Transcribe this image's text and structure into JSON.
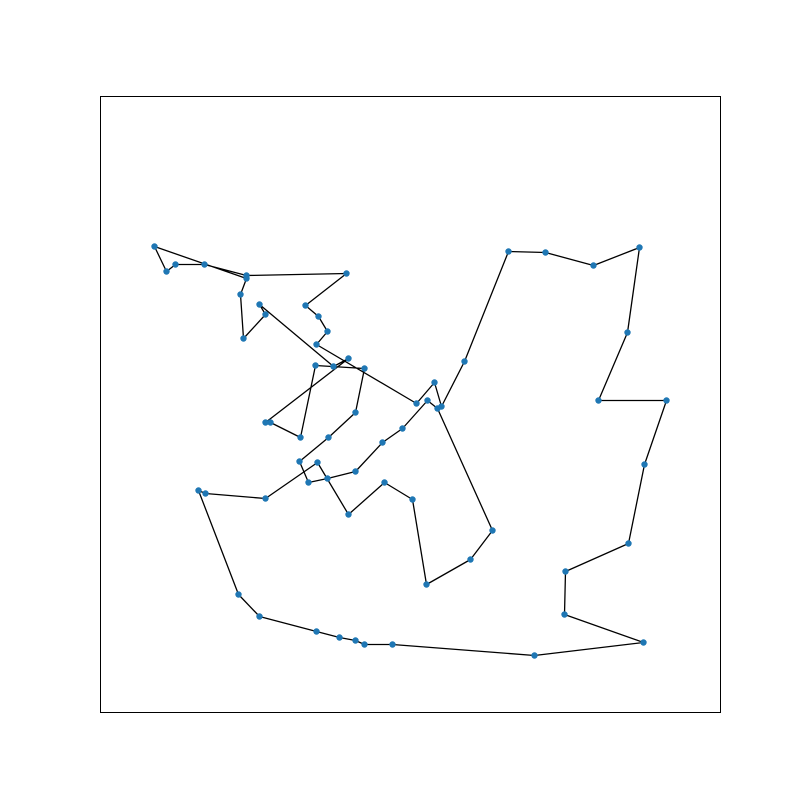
{
  "chart_data": {
    "type": "line",
    "title": "",
    "xlabel": "",
    "ylabel": "",
    "grid": false,
    "closed_path": true,
    "xlim": [
      0,
      620
    ],
    "ylim": [
      0,
      616
    ],
    "colors": {
      "line": "#000000",
      "marker": "#1f77b4"
    },
    "series": [
      {
        "x": [
          54,
          66,
          75,
          104,
          146,
          246,
          205,
          218,
          227,
          216,
          316,
          334,
          341,
          364,
          408,
          445,
          493,
          539,
          527,
          498,
          566,
          544,
          528,
          465,
          464,
          543,
          434,
          292,
          264,
          255,
          239,
          216,
          159,
          138,
          98,
          105,
          165,
          217,
          248,
          284,
          312,
          326,
          370,
          392,
          337,
          327,
          302,
          282,
          255,
          227,
          208,
          199,
          228,
          255,
          264,
          215,
          200,
          170,
          165,
          248,
          233,
          159,
          165,
          143,
          140,
          146
        ],
        "y": [
          466,
          441,
          448,
          448,
          437,
          439,
          407,
          396,
          381,
          368,
          309,
          330,
          306,
          351,
          461,
          460,
          447,
          465,
          380,
          312,
          312,
          248,
          169,
          141,
          98,
          70,
          57,
          68,
          68,
          72,
          75,
          81,
          96,
          118,
          222,
          219,
          214,
          250,
          198,
          230,
          213,
          128,
          153,
          182,
          304,
          312,
          284,
          270,
          241,
          234,
          230,
          251,
          275,
          300,
          344,
          347,
          275,
          290,
          290,
          354,
          346,
          408,
          398,
          374,
          418,
          434
        ]
      }
    ]
  }
}
